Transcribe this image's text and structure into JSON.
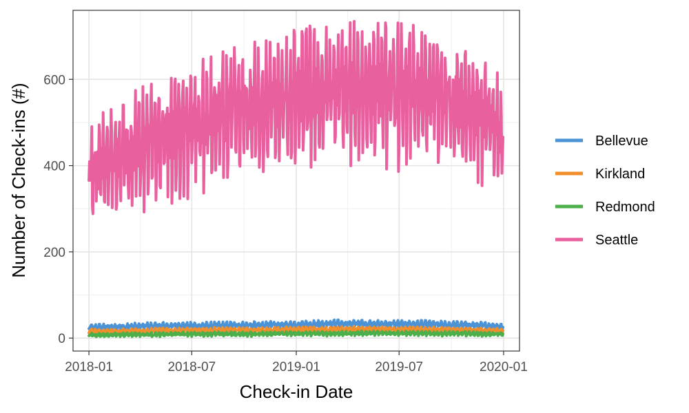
{
  "chart_data": {
    "type": "line",
    "title": "",
    "xlabel": "Check-in Date",
    "ylabel": "Number of Check-ins (#)",
    "xlim": [
      "2017-12-04",
      "2020-01-29"
    ],
    "ylim": [
      -30,
      760
    ],
    "x_ticks": [
      "2018-01",
      "2018-07",
      "2019-01",
      "2019-07",
      "2020-01"
    ],
    "y_ticks": [
      0,
      200,
      400,
      600
    ],
    "grid": true,
    "legend": "right",
    "series": [
      {
        "name": "Bellevue",
        "color": "#4C93D6",
        "x_start": "2018-01-01",
        "x_end": "2019-12-31",
        "frequency": "daily",
        "monthly_mean": [
          24,
          25,
          26,
          27,
          28,
          28,
          28,
          29,
          29,
          29,
          30,
          30,
          31,
          32,
          33,
          33,
          32,
          32,
          32,
          31,
          30,
          30,
          28,
          26
        ],
        "monthly_range": [
          12,
          12,
          12,
          13,
          13,
          13,
          13,
          13,
          13,
          13,
          13,
          13,
          14,
          14,
          14,
          14,
          14,
          14,
          14,
          14,
          13,
          13,
          13,
          12
        ]
      },
      {
        "name": "Kirkland",
        "color": "#F28E2B",
        "x_start": "2018-01-01",
        "x_end": "2019-12-31",
        "frequency": "daily",
        "monthly_mean": [
          15,
          15,
          16,
          16,
          17,
          17,
          17,
          18,
          18,
          18,
          18,
          19,
          19,
          19,
          20,
          20,
          20,
          20,
          19,
          19,
          18,
          18,
          17,
          16
        ],
        "monthly_range": [
          9,
          9,
          9,
          9,
          10,
          10,
          10,
          10,
          10,
          10,
          10,
          10,
          10,
          10,
          10,
          10,
          10,
          10,
          10,
          10,
          10,
          9,
          9,
          9
        ]
      },
      {
        "name": "Redmond",
        "color": "#4DAF4A",
        "x_start": "2018-01-01",
        "x_end": "2019-12-31",
        "frequency": "daily",
        "monthly_mean": [
          7,
          7,
          8,
          8,
          8,
          9,
          9,
          9,
          9,
          9,
          10,
          10,
          10,
          10,
          10,
          11,
          11,
          11,
          11,
          10,
          10,
          10,
          9,
          9
        ],
        "monthly_range": [
          7,
          7,
          7,
          7,
          7,
          8,
          8,
          8,
          8,
          8,
          8,
          8,
          8,
          8,
          8,
          8,
          8,
          8,
          8,
          8,
          8,
          8,
          7,
          7
        ]
      },
      {
        "name": "Seattle",
        "color": "#E8609E",
        "x_start": "2018-01-01",
        "x_end": "2019-12-31",
        "frequency": "daily",
        "monthly_mean": [
          370,
          395,
          420,
          435,
          450,
          465,
          480,
          495,
          510,
          520,
          530,
          540,
          550,
          560,
          565,
          565,
          565,
          560,
          555,
          550,
          545,
          530,
          500,
          455
        ],
        "monthly_range": [
          180,
          200,
          210,
          215,
          220,
          225,
          230,
          235,
          235,
          240,
          240,
          245,
          250,
          250,
          250,
          250,
          250,
          250,
          250,
          245,
          245,
          240,
          230,
          200
        ]
      }
    ]
  }
}
